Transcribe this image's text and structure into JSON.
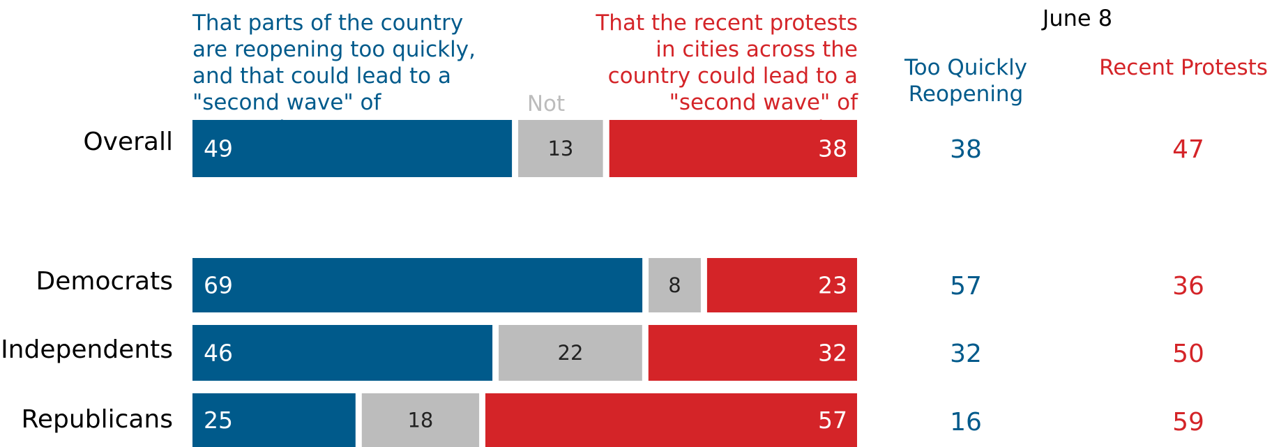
{
  "chart_data": {
    "type": "bar",
    "stacked": true,
    "orientation": "horizontal",
    "categories": [
      "Overall",
      "Democrats",
      "Independents",
      "Republicans"
    ],
    "series": [
      {
        "name": "That parts of the country are reopening too quickly, and that could lead to a \"second wave\" of coronavirus",
        "values": [
          49,
          69,
          46,
          25
        ],
        "color": "#005a8b"
      },
      {
        "name": "Not sure",
        "values": [
          13,
          8,
          22,
          18
        ],
        "color": "#bcbcbc"
      },
      {
        "name": "That the recent protests in cities across the country could lead to a \"second wave\" of coronavirus",
        "values": [
          38,
          23,
          32,
          57
        ],
        "color": "#d42428"
      }
    ],
    "comparison": {
      "title": "June 8",
      "columns": [
        "Too Quickly Reopening",
        "Recent Protests"
      ],
      "values": [
        [
          38,
          47
        ],
        [
          57,
          36
        ],
        [
          32,
          50
        ],
        [
          16,
          59
        ]
      ]
    }
  }
}
